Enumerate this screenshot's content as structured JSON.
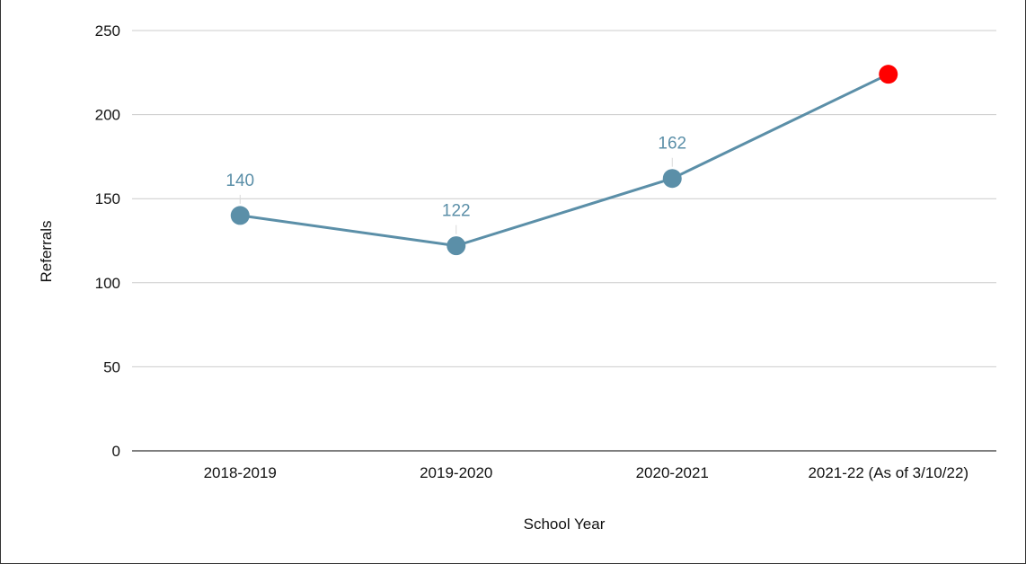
{
  "chart_data": {
    "type": "line",
    "title": "",
    "xlabel": "School Year",
    "ylabel": "Referrals",
    "categories": [
      "2018-2019",
      "2019-2020",
      "2020-2021",
      "2021-22 (As of 3/10/22)"
    ],
    "series": [
      {
        "values": [
          140,
          122,
          162,
          224
        ],
        "data_labels": [
          "140",
          "122",
          "162",
          ""
        ],
        "color": "#5b8fa8",
        "highlight_point": {
          "index": 3,
          "color": "#ff0000"
        }
      }
    ],
    "ylim": [
      0,
      250
    ],
    "yticks": [
      0,
      50,
      100,
      150,
      200,
      250
    ],
    "grid": true,
    "legend": "none"
  }
}
